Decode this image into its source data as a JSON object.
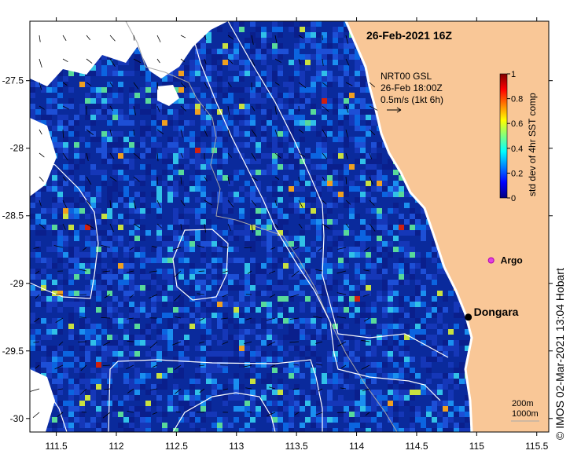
{
  "map": {
    "title": "26-Feb-2021 16Z",
    "x_ticks": [
      "111.5",
      "112",
      "112.5",
      "113",
      "113.5",
      "114",
      "114.5",
      "115",
      "115.5"
    ],
    "x_tick_values": [
      111.5,
      112,
      112.5,
      113,
      113.5,
      114,
      114.5,
      115,
      115.5
    ],
    "y_ticks": [
      "-27.5",
      "-28",
      "-28.5",
      "-29",
      "-29.5",
      "-30"
    ],
    "y_tick_values": [
      -27.5,
      -28,
      -28.5,
      -29,
      -29.5,
      -30
    ],
    "lon_range": [
      111.28,
      115.6
    ],
    "lat_range": [
      -30.1,
      -27.06
    ],
    "colors": {
      "ocean_base": "#0a2a9c",
      "land": "#f9c797",
      "contour": "#ffffff",
      "current_arrow": "#000000"
    }
  },
  "current_legend": {
    "line1": "NRT00 GSL",
    "line2": "26-Feb 18:00Z",
    "line3": "0.5m/s (1kt 6h)"
  },
  "colorbar": {
    "label": "std dev of 4hr SST comp",
    "ticks": [
      "0",
      "0.2",
      "0.4",
      "0.6",
      "0.8",
      "1"
    ],
    "tick_values": [
      0,
      0.2,
      0.4,
      0.6,
      0.8,
      1
    ],
    "stops": [
      "#00007f",
      "#0000ff",
      "#0080ff",
      "#00ffff",
      "#80ff80",
      "#ffff00",
      "#ff8000",
      "#ff0000",
      "#7f0000"
    ]
  },
  "markers": {
    "argo_label": "Argo",
    "argo_color": "#e040e0",
    "argo_lon": 115.12,
    "argo_lat": -28.83,
    "dongara_label": "Dongara",
    "dongara_lon": 114.93,
    "dongara_lat": -29.25
  },
  "scale_bar": {
    "line1": "200m",
    "line2": "1000m"
  },
  "credit": "©  IMOS 02-Mar-2021 13:04 Hobart"
}
